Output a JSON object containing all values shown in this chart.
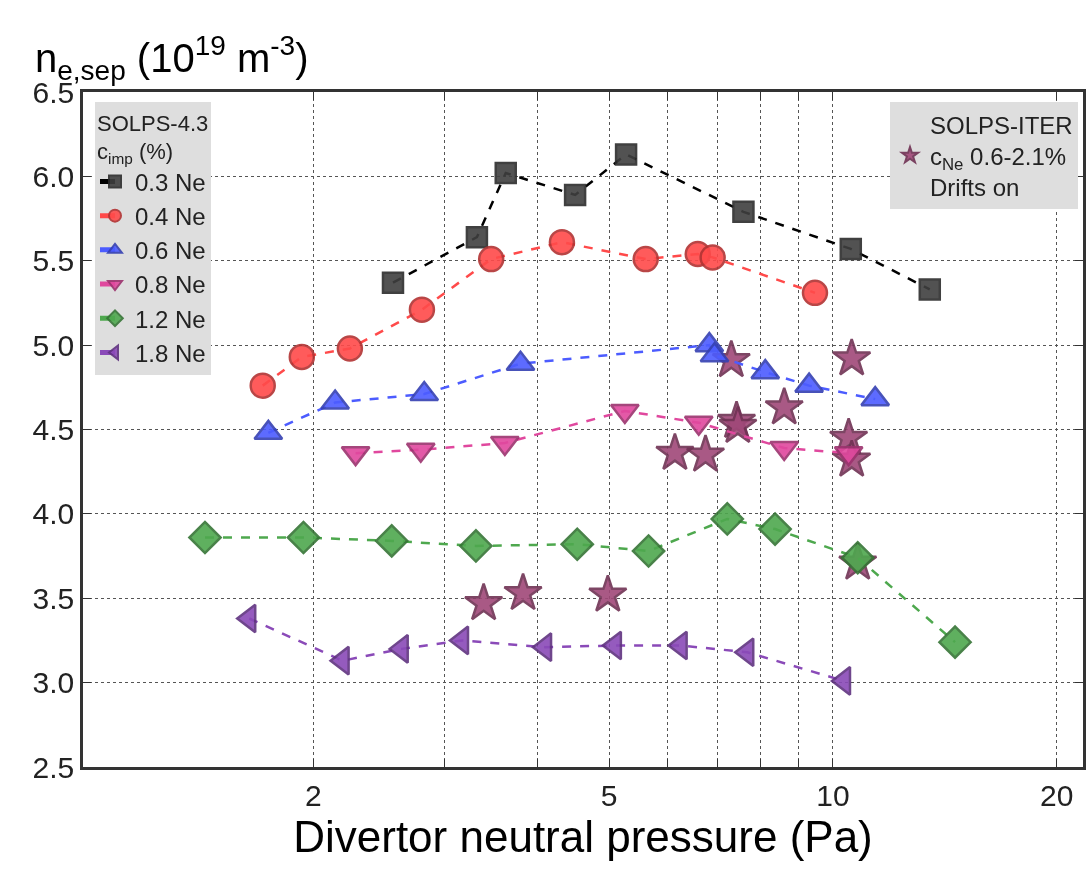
{
  "chart_data": {
    "type": "line",
    "ylabel": "n$_{e,sep}$ (10$^{19}$ m$^{-3}$)",
    "xlabel": "Divertor neutral pressure (Pa)",
    "legend_title": "SOLPS-4.3\nc$_{imp}$ (%)",
    "log": "x",
    "grid": true,
    "legend": "top left",
    "line_style": "dashed",
    "xlim": [
      0.98,
      21.7
    ],
    "ylim": [
      2.5,
      6.5
    ],
    "xticks": [
      2,
      {
        "value": 3,
        "label": null
      },
      {
        "value": 4,
        "label": null
      },
      5,
      {
        "value": 6,
        "label": null
      },
      {
        "value": 7,
        "label": null
      },
      {
        "value": 8,
        "label": null
      },
      {
        "value": 9,
        "label": null
      },
      10,
      20
    ],
    "yticks": [
      2.5,
      {
        "value": 3,
        "label": "3.0"
      },
      3.5,
      {
        "value": 4,
        "label": "4.0"
      },
      4.5,
      {
        "value": 5,
        "label": "5.0"
      },
      5.5,
      {
        "value": 6,
        "label": "6.0"
      },
      6.5
    ],
    "series": [
      {
        "name": "0.3 Ne",
        "color": "#404040",
        "marker": "square",
        "x": [
          2.56,
          3.32,
          3.63,
          4.5,
          5.27,
          7.58,
          10.57,
          13.5
        ],
        "values": [
          5.37,
          5.64,
          6.02,
          5.89,
          6.13,
          5.79,
          5.57,
          5.33
        ]
      },
      {
        "name": "0.4 Ne",
        "color": "#ff4a4a",
        "marker": "circle",
        "x": [
          1.71,
          1.93,
          2.24,
          2.8,
          3.47,
          4.32,
          5.6,
          6.58,
          6.89,
          9.46
        ],
        "values": [
          4.76,
          4.93,
          4.98,
          5.21,
          5.51,
          5.61,
          5.51,
          5.54,
          5.52,
          5.31
        ]
      },
      {
        "name": "0.6 Ne",
        "color": "#4c5cff",
        "marker": "triangle",
        "x": [
          1.74,
          2.14,
          2.82,
          3.8,
          6.82,
          6.93,
          8.11,
          9.29,
          11.4
        ],
        "values": [
          4.48,
          4.66,
          4.71,
          4.89,
          5.0,
          4.94,
          4.84,
          4.76,
          4.68
        ]
      },
      {
        "name": "0.8 Ne",
        "color": "#e0489e",
        "marker": "triangle-down",
        "x": [
          2.28,
          2.79,
          3.62,
          5.25,
          6.6,
          8.6,
          10.5
        ],
        "values": [
          4.36,
          4.38,
          4.42,
          4.61,
          4.54,
          4.39,
          4.36
        ]
      },
      {
        "name": "1.2 Ne",
        "color": "#4ea84e",
        "marker": "diamond",
        "x": [
          1.43,
          1.94,
          2.55,
          3.31,
          4.53,
          5.65,
          7.21,
          8.36,
          10.8,
          14.6
        ],
        "values": [
          3.86,
          3.86,
          3.84,
          3.81,
          3.82,
          3.78,
          3.97,
          3.91,
          3.74,
          3.24
        ]
      },
      {
        "name": "1.8 Ne",
        "color": "#8a4ab8",
        "marker": "triangle-left",
        "x": [
          1.64,
          2.19,
          2.63,
          3.17,
          4.1,
          5.09,
          6.24,
          7.67,
          10.35
        ],
        "values": [
          3.38,
          3.13,
          3.2,
          3.25,
          3.21,
          3.22,
          3.22,
          3.18,
          3.01
        ]
      },
      {
        "name": "SOLPS-ITER\nc$_{Ne}$ 0.6-2.1%\nDrifts on",
        "type": "scatter",
        "color": "#a04878",
        "marker": "star",
        "x": [
          3.39,
          3.83,
          4.98,
          10.8,
          6.13,
          6.74,
          7.3,
          7.42,
          7.45,
          8.6,
          10.6,
          10.5,
          10.6
        ],
        "values": [
          3.47,
          3.53,
          3.52,
          3.71,
          4.36,
          4.35,
          4.91,
          4.55,
          4.52,
          4.63,
          4.92,
          4.45,
          4.32
        ]
      }
    ]
  }
}
